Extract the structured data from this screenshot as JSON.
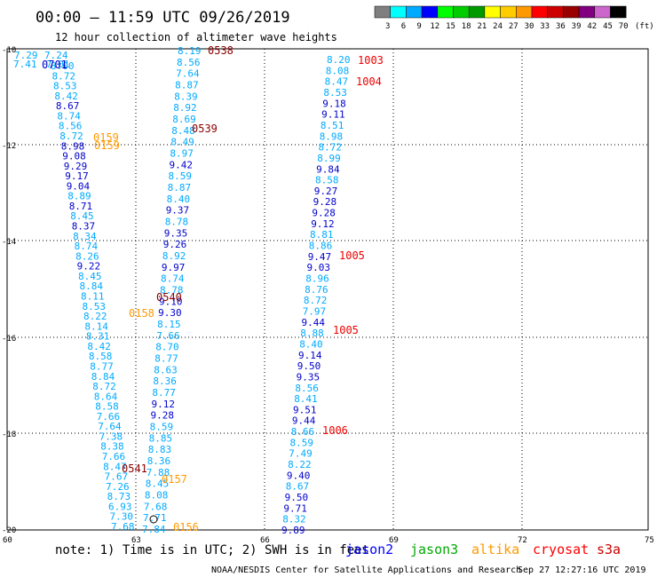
{
  "header": {
    "title": "00:00 – 11:59 UTC 09/26/2019",
    "subtitle": "12 hour collection of altimeter wave heights"
  },
  "legend": {
    "unit": "(ft)",
    "bins": [
      {
        "label": "3",
        "color": "#7f7f7f"
      },
      {
        "label": "6",
        "color": "#00ffff"
      },
      {
        "label": "9",
        "color": "#00aaff"
      },
      {
        "label": "12",
        "color": "#0000ff"
      },
      {
        "label": "15",
        "color": "#00ff00"
      },
      {
        "label": "18",
        "color": "#00cc00"
      },
      {
        "label": "21",
        "color": "#009900"
      },
      {
        "label": "24",
        "color": "#ffff00"
      },
      {
        "label": "27",
        "color": "#ffcc00"
      },
      {
        "label": "30",
        "color": "#ff9900"
      },
      {
        "label": "33",
        "color": "#ff0000"
      },
      {
        "label": "36",
        "color": "#cc0000"
      },
      {
        "label": "39",
        "color": "#990000"
      },
      {
        "label": "42",
        "color": "#800080"
      },
      {
        "label": "45",
        "color": "#cc66cc"
      },
      {
        "label": "70",
        "color": "#000000"
      }
    ]
  },
  "axes": {
    "lon_labels": [
      "60",
      "63",
      "66",
      "69",
      "72",
      "75"
    ],
    "lat_labels": [
      "-10",
      "-12",
      "-14",
      "-16",
      "-18",
      "-20"
    ]
  },
  "note": "note: 1) Time is in UTC; 2) SWH is in feet",
  "satellites": [
    {
      "name": "jason2",
      "color": "#0000ff"
    },
    {
      "name": "jason3",
      "color": "#00aa00"
    },
    {
      "name": "altika",
      "color": "#ff9900"
    },
    {
      "name": "cryosat",
      "color": "#ff0000"
    },
    {
      "name": "s3a",
      "color": "#cc0000"
    }
  ],
  "credit": "NOAA/NESDIS Center for Satellite Applications and Research",
  "timestamp": "Sep 27 12:27:16 UTC 2019",
  "colors": {
    "cyan": "#00aaff",
    "navy": "#0000cc",
    "orange": "#ff9900",
    "red": "#ee0000",
    "maroon": "#880000"
  },
  "track4": {
    "values": [
      "8.20",
      "8.08",
      "8.47",
      "8.53",
      "9.18",
      "9.11",
      "8.51",
      "8.98",
      "8.72",
      "8.99",
      "9.84",
      "8.58",
      "9.27",
      "9.28",
      "9.28",
      "9.12",
      "8.81",
      "8.86",
      "9.47",
      "9.03",
      "8.96",
      "8.76",
      "8.72",
      "7.97",
      "9.44",
      "8.88",
      "8.40",
      "9.14",
      "9.50",
      "9.35",
      "8.56",
      "8.41",
      "9.51",
      "9.44",
      "8.66",
      "8.59",
      "7.49",
      "8.22",
      "9.40",
      "8.67",
      "9.50",
      "9.71",
      "8.32",
      "9.89"
    ],
    "colors": [
      "c",
      "c",
      "c",
      "c",
      "n",
      "n",
      "c",
      "c",
      "c",
      "c",
      "n",
      "c",
      "n",
      "n",
      "n",
      "n",
      "c",
      "c",
      "n",
      "n",
      "c",
      "c",
      "c",
      "c",
      "n",
      "c",
      "c",
      "n",
      "n",
      "n",
      "c",
      "c",
      "n",
      "n",
      "c",
      "c",
      "c",
      "c",
      "n",
      "c",
      "n",
      "n",
      "c",
      "n"
    ]
  },
  "track3": {
    "values": [
      "8.19",
      "8.56",
      "7.64",
      "8.87",
      "8.39",
      "8.92",
      "8.69",
      "8.48",
      "8.49",
      "8.97",
      "9.42",
      "8.59",
      "8.87",
      "8.40",
      "9.37",
      "8.78",
      "9.35",
      "9.26",
      "8.92",
      "9.97",
      "8.74",
      "8.78",
      "9.10",
      "9.30",
      "8.15",
      "7.66",
      "8.70",
      "8.77",
      "8.63",
      "8.36",
      "8.77",
      "9.12",
      "9.28",
      "8.59",
      "8.85",
      "8.83",
      "8.36",
      "7.88",
      "8.45",
      "8.08",
      "7.68",
      "7.71",
      "7.84"
    ],
    "colors": [
      "c",
      "c",
      "c",
      "c",
      "c",
      "c",
      "c",
      "c",
      "c",
      "c",
      "n",
      "c",
      "c",
      "c",
      "n",
      "c",
      "n",
      "n",
      "c",
      "n",
      "c",
      "c",
      "n",
      "n",
      "c",
      "c",
      "c",
      "c",
      "c",
      "c",
      "c",
      "n",
      "n",
      "c",
      "c",
      "c",
      "c",
      "c",
      "c",
      "c",
      "c",
      "c",
      "c"
    ]
  },
  "track2": {
    "values": [
      "8.00",
      "8.72",
      "8.53",
      "8.42",
      "8.67",
      "8.74",
      "8.56",
      "8.72",
      "8.98",
      "9.08",
      "9.29",
      "9.17",
      "9.04",
      "8.89",
      "8.71",
      "8.45",
      "8.37",
      "8.34",
      "8.74",
      "8.26",
      "9.22",
      "8.45",
      "8.84",
      "8.11",
      "8.53",
      "8.22",
      "8.14",
      "8.31",
      "8.42",
      "8.58",
      "8.77",
      "8.84",
      "8.72",
      "8.64",
      "8.58",
      "7.66",
      "7.64",
      "7.38",
      "8.38",
      "7.66",
      "8.47",
      "7.67",
      "7.26",
      "8.73",
      "6.93",
      "7.30",
      "7.68"
    ],
    "colors": [
      "c",
      "c",
      "c",
      "c",
      "n",
      "c",
      "c",
      "c",
      "n",
      "n",
      "n",
      "n",
      "n",
      "c",
      "n",
      "c",
      "n",
      "c",
      "c",
      "c",
      "n",
      "c",
      "c",
      "c",
      "c",
      "c",
      "c",
      "c",
      "c",
      "c",
      "c",
      "c",
      "c",
      "c",
      "c",
      "c",
      "c",
      "c",
      "c",
      "c",
      "c",
      "c",
      "c",
      "c",
      "c",
      "c",
      "c"
    ]
  },
  "track1": {
    "values": [
      "7.29",
      "7.41",
      "7.24",
      "7.01"
    ]
  },
  "time_labels": [
    {
      "text": "0538",
      "color": "m"
    },
    {
      "text": "1003",
      "color": "r"
    },
    {
      "text": "1004",
      "color": "r"
    },
    {
      "text": "0539",
      "color": "m"
    },
    {
      "text": "0159",
      "color": "o"
    },
    {
      "text": "0159",
      "color": "o"
    },
    {
      "text": "1005",
      "color": "r"
    },
    {
      "text": "0540",
      "color": "m"
    },
    {
      "text": "0158",
      "color": "o"
    },
    {
      "text": "1005",
      "color": "r"
    },
    {
      "text": "1006",
      "color": "r"
    },
    {
      "text": "0541",
      "color": "m"
    },
    {
      "text": "0157",
      "color": "o"
    },
    {
      "text": "0156",
      "color": "o"
    },
    {
      "text": "0701",
      "color": "n"
    }
  ]
}
